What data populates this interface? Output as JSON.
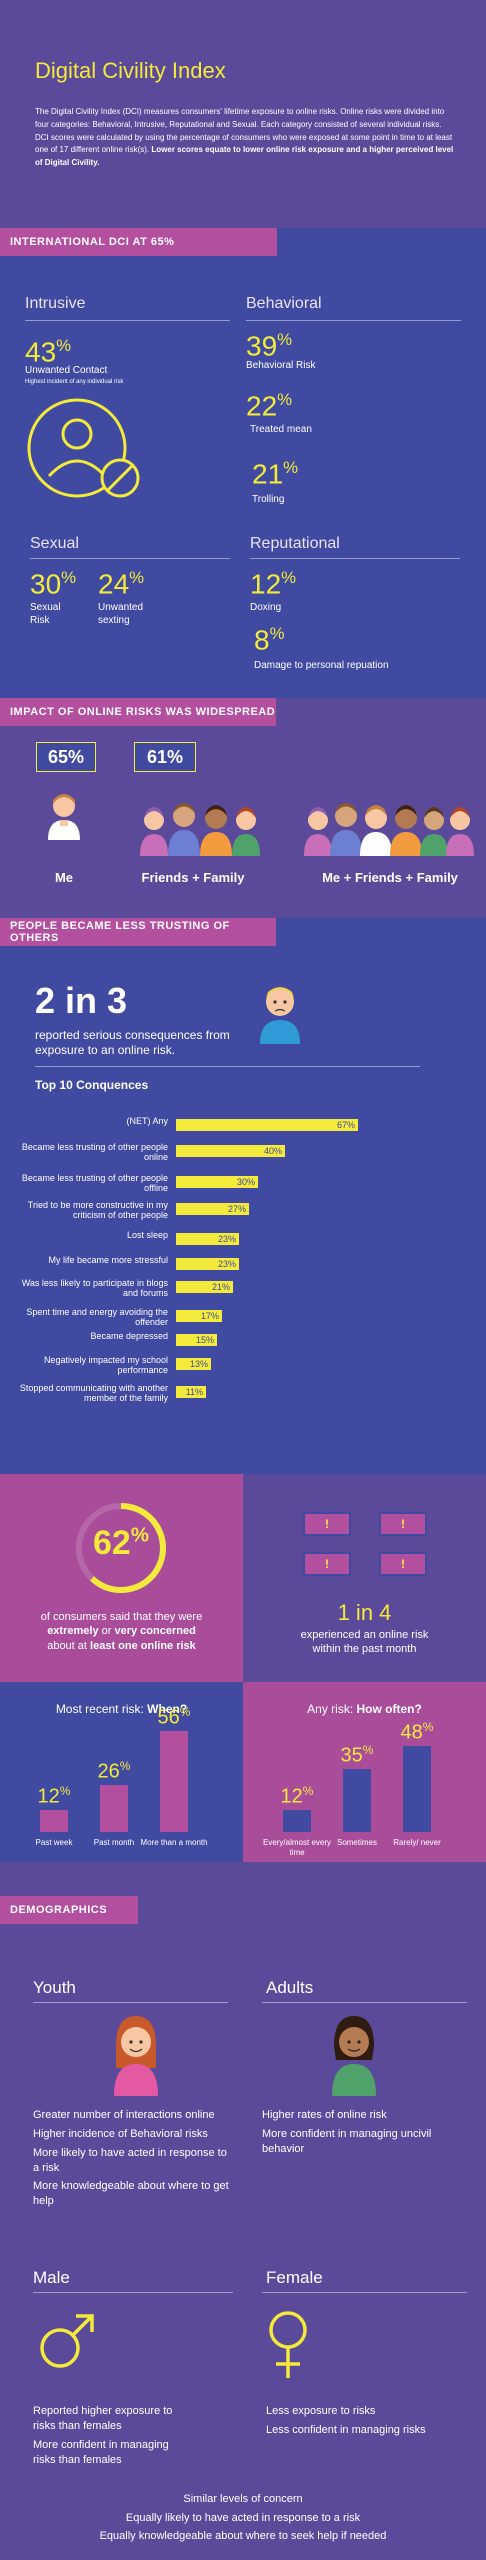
{
  "intro": {
    "title": "Digital Civility Index",
    "text": "The Digital Civility Index (DCI) measures consumers' lifetime exposure to online risks. Online risks were divided into four categories: Behavioral, Intrusive, Reputational and Sexual. Each category consisted of several individual risks. DCI scores were calculated by using the percentage of consumers who were exposed at some point in time to at least one of 17 different online risk(s).",
    "bold_text": "Lower scores equate to lower online risk exposure and a higher perceived level of Digital Civility."
  },
  "dci": {
    "banner": "International DCI at 65%",
    "intrusive": {
      "title": "Intrusive",
      "value": "43",
      "label": "Unwanted Contact",
      "note": "Highest incident of any individual risk"
    },
    "behavioral": {
      "title": "Behavioral",
      "items": [
        {
          "value": "39",
          "label": "Behavioral Risk"
        },
        {
          "value": "22",
          "label": "Treated mean"
        },
        {
          "value": "21",
          "label": "Trolling"
        }
      ]
    },
    "sexual": {
      "title": "Sexual",
      "items": [
        {
          "value": "30",
          "label": "Sexual Risk"
        },
        {
          "value": "24",
          "label": "Unwanted sexting"
        }
      ]
    },
    "reputational": {
      "title": "Reputational",
      "items": [
        {
          "value": "12",
          "label": "Doxing"
        },
        {
          "value": "8",
          "label": "Damage to personal repuation"
        }
      ]
    }
  },
  "impact": {
    "banner": "Impact of online risks was widespread",
    "groups": [
      {
        "value": "65%",
        "label": "Me"
      },
      {
        "value": "61%",
        "label": "Friends + Family"
      },
      {
        "value": "",
        "label": "Me + Friends + Family"
      }
    ]
  },
  "trust": {
    "banner": "People became less trusting of others",
    "big": "2 in 3",
    "sub": "reported serious consequences from exposure to an online risk.",
    "top_title": "Top 10 Conquences"
  },
  "chart_data": {
    "type": "bar",
    "title": "Top 10 Conquences",
    "categories": [
      "(NET) Any",
      "Became less trusting of other people online",
      "Became less trusting of other people offline",
      "Tried to be more constructive in my criticism of other people",
      "Lost sleep",
      "My life became more stressful",
      "Was less likely to participate in blogs and forums",
      "Spent time and energy avoiding the offender",
      "Became depressed",
      "Negatively impacted my school performance",
      "Stopped communicating with another member of the family"
    ],
    "values": [
      67,
      40,
      30,
      27,
      23,
      23,
      21,
      17,
      15,
      13,
      11
    ],
    "labels": [
      "67%",
      "40%",
      "30%",
      "27%",
      "23%",
      "23%",
      "21%",
      "17%",
      "15%",
      "13%",
      "11%"
    ],
    "xlim": [
      0,
      100
    ]
  },
  "concern": {
    "value": "62",
    "line1": "of consumers said that they were",
    "line2a": "extremely",
    "line2b": " or ",
    "line2c": "very concerned",
    "line3a": "about at ",
    "line3b": "least one online risk",
    "one_in_four": "1 in 4",
    "one_in_four_sub": "experienced an online risk within the past month"
  },
  "when": {
    "title_a": "Most recent risk: ",
    "title_b": "When?",
    "values": [
      12,
      26,
      56
    ],
    "labels": [
      "Past week",
      "Past month",
      "More than a month"
    ]
  },
  "often": {
    "title_a": "Any risk: ",
    "title_b": "How often?",
    "values": [
      12,
      35,
      48
    ],
    "labels": [
      "Every/almost every time",
      "Sometimes",
      "Rarely/ never"
    ]
  },
  "demographics": {
    "banner": "Demographics",
    "youth": {
      "title": "Youth",
      "items": [
        "Greater number of interactions online",
        "Higher incidence of Behavioral risks",
        "More likely to have acted in response to a risk",
        "More knowledgeable about where to get help"
      ]
    },
    "adults": {
      "title": "Adults",
      "items": [
        "Higher rates of online risk",
        "More confident in managing uncivil behavior"
      ]
    },
    "male": {
      "title": "Male",
      "items": [
        "Reported higher exposure to risks than females",
        "More confident in managing risks than females"
      ]
    },
    "female": {
      "title": "Female",
      "items": [
        "Less exposure to risks",
        "Less confident in managing risks"
      ]
    },
    "footer": [
      "Similar levels of concern",
      "Equally likely to have acted in response to a risk",
      "Equally knowledgeable about where to seek help if needed"
    ]
  },
  "colors": {
    "purple": "#5b4a9a",
    "blue": "#3f4aa0",
    "magenta": "#b24f9f",
    "yellow": "#f3ea3b"
  }
}
